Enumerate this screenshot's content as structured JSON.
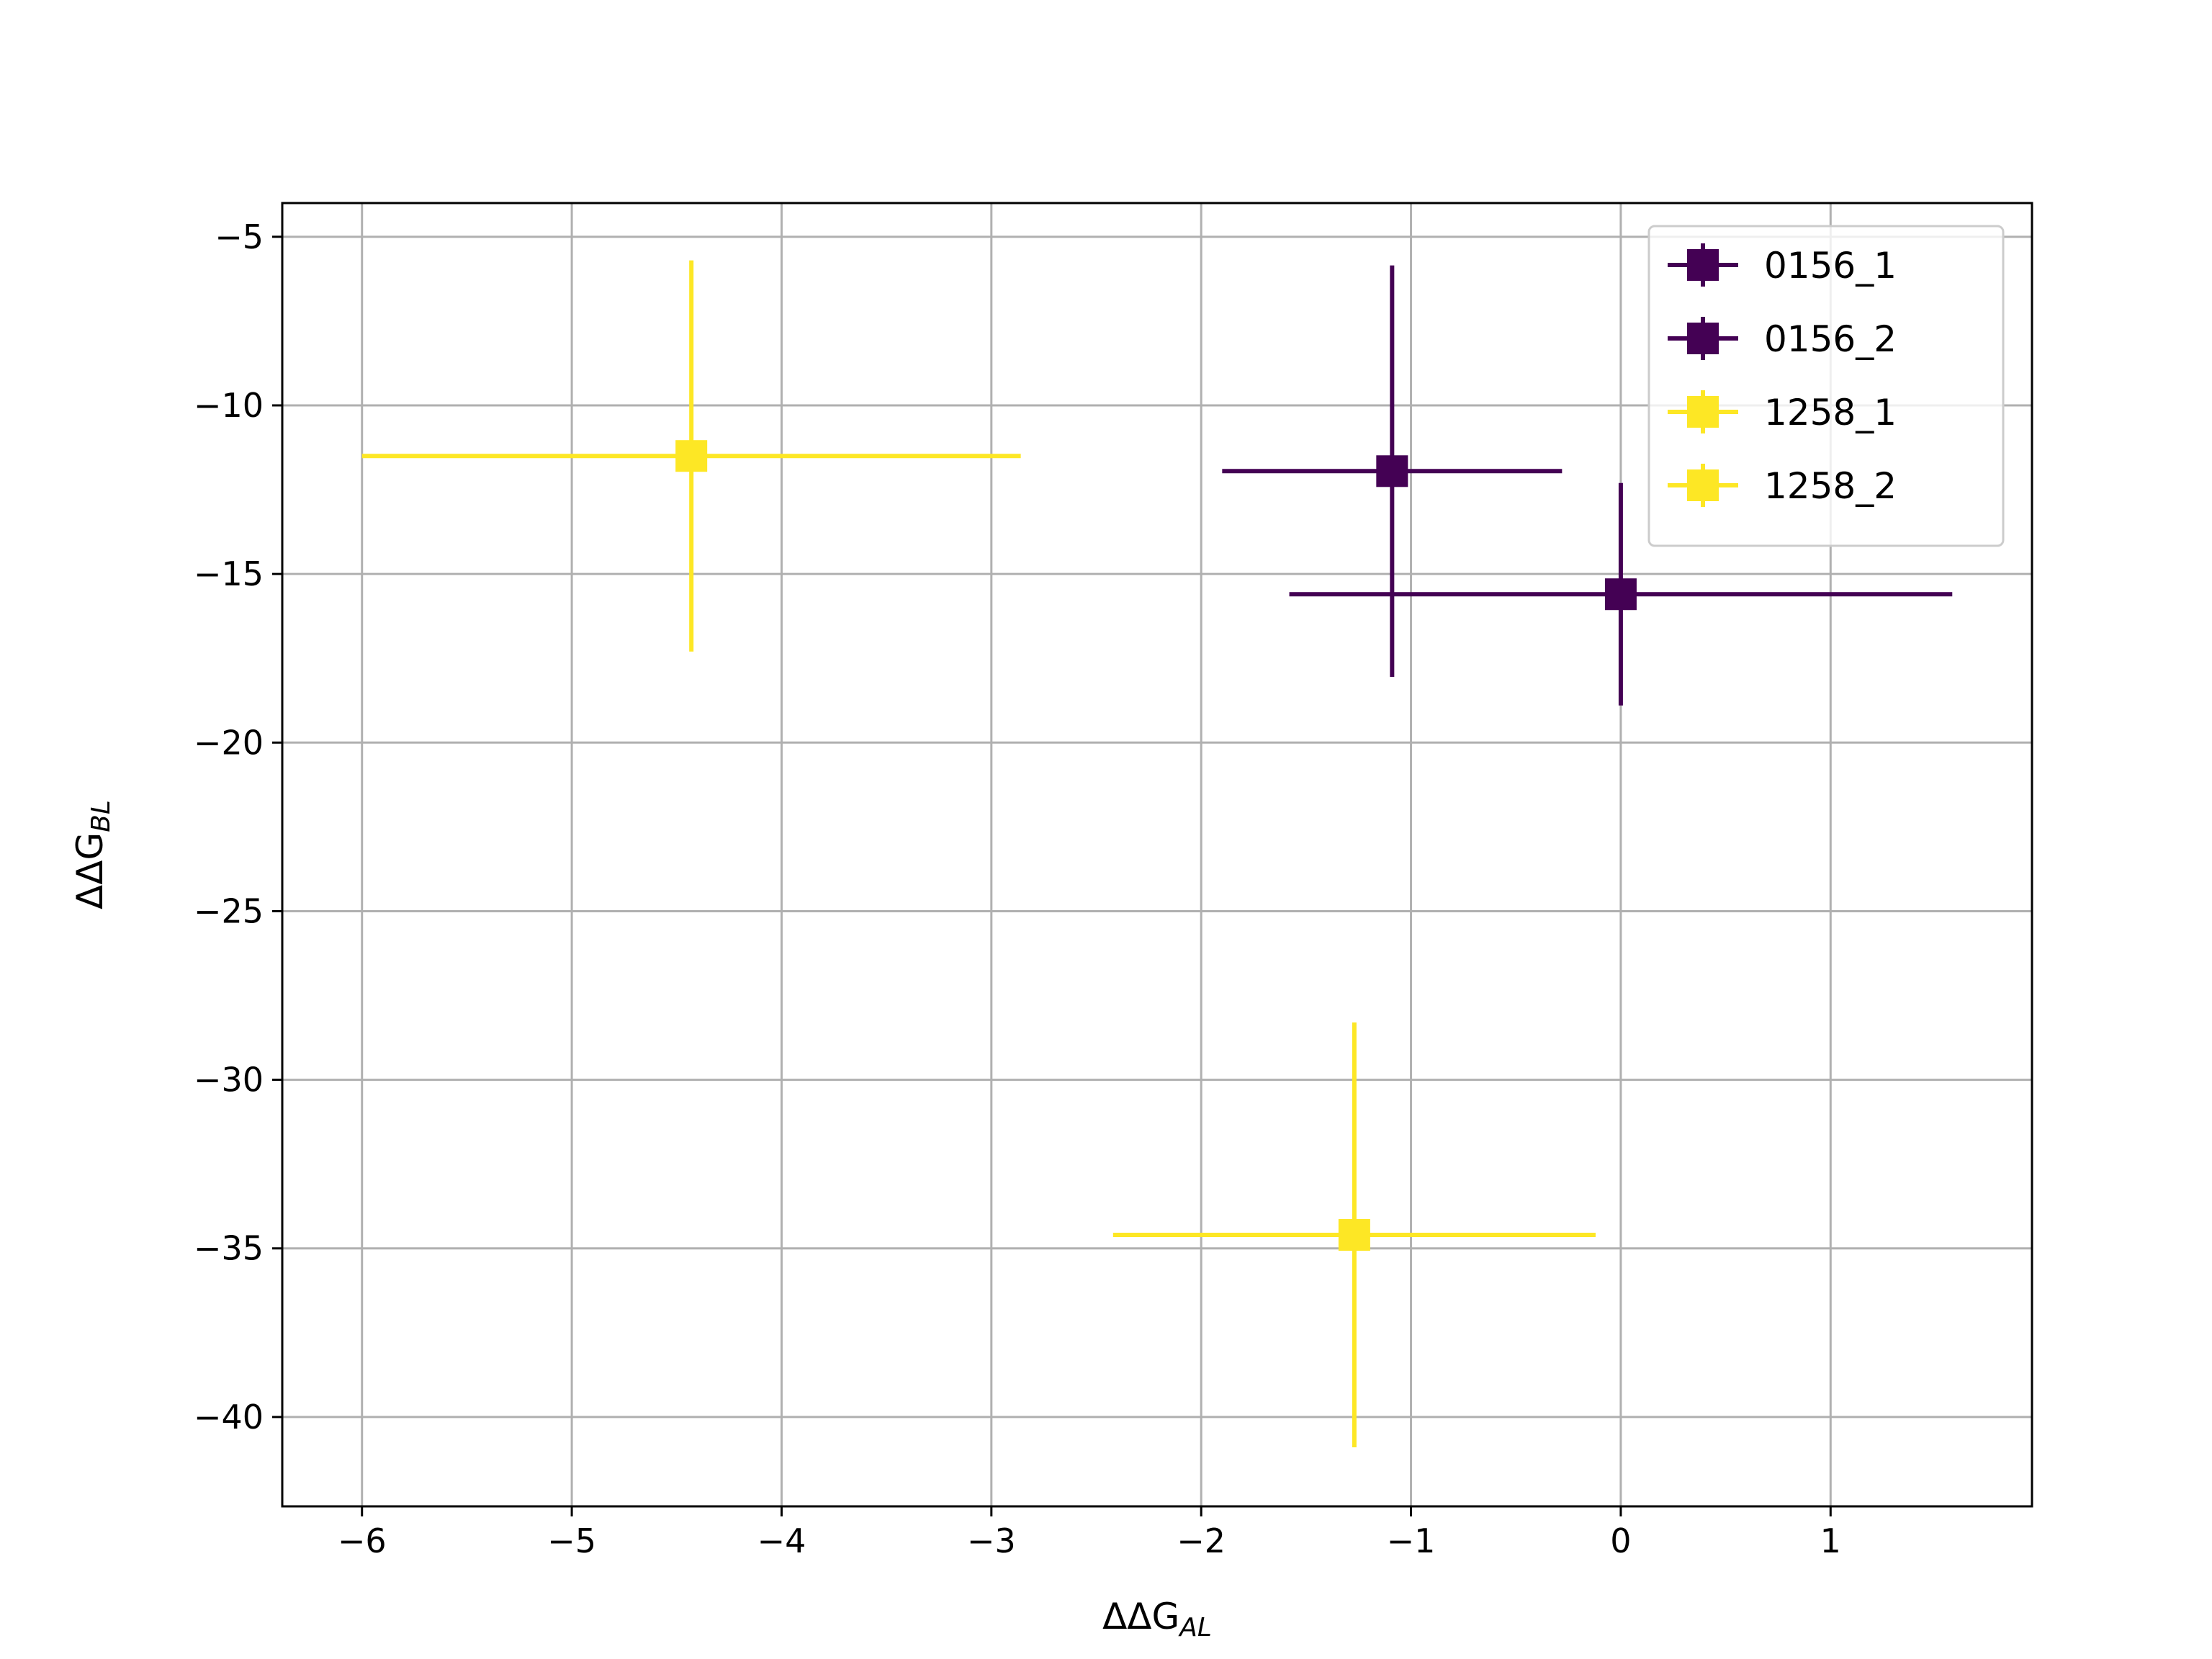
{
  "chart_data": {
    "type": "scatter",
    "title": "",
    "xlabel": {
      "main": "ΔΔG",
      "sub": "AL"
    },
    "ylabel": {
      "main": "ΔΔG",
      "sub": "BL"
    },
    "xlim": [
      -6.38,
      1.96
    ],
    "ylim": [
      -42.65,
      -4.0
    ],
    "xticks": [
      -6,
      -5,
      -4,
      -3,
      -2,
      -1,
      0,
      1
    ],
    "xtick_labels": [
      "−6",
      "−5",
      "−4",
      "−3",
      "−2",
      "−1",
      "0",
      "1"
    ],
    "yticks": [
      -5,
      -10,
      -15,
      -20,
      -25,
      -30,
      -35,
      -40
    ],
    "ytick_labels": [
      "−5",
      "−10",
      "−15",
      "−20",
      "−25",
      "−30",
      "−35",
      "−40"
    ],
    "grid": true,
    "legend_position": "top-right",
    "series": [
      {
        "name": "0156_1",
        "color": "#440154",
        "x": -1.09,
        "y": -11.95,
        "xerr": 0.81,
        "yerr": 6.1,
        "marker": "square"
      },
      {
        "name": "0156_2",
        "color": "#440154",
        "x": 0.0,
        "y": -15.6,
        "xerr": 1.58,
        "yerr": 3.3,
        "marker": "square"
      },
      {
        "name": "1258_1",
        "color": "#fde725",
        "x": -4.43,
        "y": -11.5,
        "xerr": 1.57,
        "yerr": 5.8,
        "marker": "square"
      },
      {
        "name": "1258_2",
        "color": "#fde725",
        "x": -1.27,
        "y": -34.6,
        "xerr": 1.15,
        "yerr": 6.3,
        "marker": "square"
      }
    ]
  }
}
